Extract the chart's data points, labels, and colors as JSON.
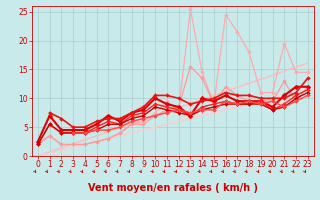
{
  "xlabel": "Vent moyen/en rafales ( km/h )",
  "xlim": [
    -0.5,
    23.5
  ],
  "ylim": [
    0,
    26
  ],
  "xticks": [
    0,
    1,
    2,
    3,
    4,
    5,
    6,
    7,
    8,
    9,
    10,
    11,
    12,
    13,
    14,
    15,
    16,
    17,
    18,
    19,
    20,
    21,
    22,
    23
  ],
  "yticks": [
    0,
    5,
    10,
    15,
    20,
    25
  ],
  "bg_color": "#c8eaea",
  "grid_color": "#aacccc",
  "lines": [
    {
      "x": [
        0,
        1,
        2,
        3,
        4,
        5,
        6,
        7,
        8,
        9,
        10,
        11,
        12,
        13,
        14,
        15,
        16,
        17,
        18,
        19,
        20,
        21,
        22,
        23
      ],
      "y": [
        0.0,
        0.7,
        1.4,
        2.1,
        2.8,
        3.5,
        4.2,
        4.9,
        5.6,
        6.3,
        7.0,
        7.7,
        8.4,
        9.1,
        9.8,
        10.5,
        11.2,
        11.9,
        12.6,
        13.3,
        14.0,
        14.7,
        15.4,
        16.1
      ],
      "color": "#ffbbbb",
      "lw": 1.0,
      "marker": null,
      "ms": 0
    },
    {
      "x": [
        0,
        1,
        2,
        3,
        4,
        5,
        6,
        7,
        8,
        9,
        10,
        11,
        12,
        13,
        14,
        15,
        16,
        17,
        18,
        19,
        20,
        21,
        22,
        23
      ],
      "y": [
        0.0,
        0.5,
        1.0,
        1.5,
        2.0,
        2.5,
        3.0,
        3.5,
        4.0,
        4.5,
        5.0,
        5.5,
        6.0,
        6.5,
        7.0,
        7.5,
        8.0,
        8.5,
        9.0,
        9.5,
        10.0,
        10.5,
        11.0,
        11.5
      ],
      "color": "#ffcccc",
      "lw": 1.0,
      "marker": null,
      "ms": 0
    },
    {
      "x": [
        0,
        1,
        2,
        3,
        4,
        5,
        6,
        7,
        8,
        9,
        10,
        11,
        12,
        13,
        14,
        15,
        16,
        17,
        18,
        19,
        20,
        21,
        22,
        23
      ],
      "y": [
        2.0,
        3.5,
        2.0,
        2.0,
        2.0,
        2.5,
        3.0,
        4.0,
        5.5,
        6.0,
        7.5,
        9.5,
        8.0,
        25.5,
        14.5,
        9.0,
        24.5,
        21.5,
        18.0,
        11.0,
        11.0,
        19.5,
        14.5,
        14.5
      ],
      "color": "#ffaaaa",
      "lw": 0.9,
      "marker": "D",
      "ms": 2.0
    },
    {
      "x": [
        0,
        1,
        2,
        3,
        4,
        5,
        6,
        7,
        8,
        9,
        10,
        11,
        12,
        13,
        14,
        15,
        16,
        17,
        18,
        19,
        20,
        21,
        22,
        23
      ],
      "y": [
        2.0,
        3.5,
        2.0,
        2.0,
        2.0,
        2.5,
        3.0,
        4.0,
        5.5,
        5.5,
        7.0,
        8.0,
        8.5,
        15.5,
        13.5,
        9.0,
        12.0,
        10.5,
        9.5,
        9.5,
        9.5,
        13.0,
        9.5,
        12.0
      ],
      "color": "#ff9999",
      "lw": 0.9,
      "marker": "D",
      "ms": 2.0
    },
    {
      "x": [
        0,
        1,
        2,
        3,
        4,
        5,
        6,
        7,
        8,
        9,
        10,
        11,
        12,
        13,
        14,
        15,
        16,
        17,
        18,
        19,
        20,
        21,
        22,
        23
      ],
      "y": [
        2.5,
        7.0,
        4.5,
        4.5,
        4.5,
        5.5,
        7.0,
        6.0,
        7.5,
        8.0,
        10.0,
        9.0,
        8.5,
        7.0,
        10.0,
        9.5,
        10.5,
        9.5,
        9.5,
        9.5,
        8.5,
        10.5,
        12.0,
        12.0
      ],
      "color": "#dd0000",
      "lw": 1.5,
      "marker": "D",
      "ms": 2.5
    },
    {
      "x": [
        0,
        1,
        2,
        3,
        4,
        5,
        6,
        7,
        8,
        9,
        10,
        11,
        12,
        13,
        14,
        15,
        16,
        17,
        18,
        19,
        20,
        21,
        22,
        23
      ],
      "y": [
        2.0,
        5.5,
        4.0,
        4.0,
        4.0,
        5.0,
        6.0,
        5.5,
        7.0,
        7.5,
        9.0,
        8.5,
        8.0,
        7.0,
        8.5,
        9.0,
        9.5,
        9.0,
        9.0,
        9.5,
        8.0,
        9.0,
        10.5,
        11.5
      ],
      "color": "#ff2222",
      "lw": 1.0,
      "marker": "D",
      "ms": 2.0
    },
    {
      "x": [
        0,
        1,
        2,
        3,
        4,
        5,
        6,
        7,
        8,
        9,
        10,
        11,
        12,
        13,
        14,
        15,
        16,
        17,
        18,
        19,
        20,
        21,
        22,
        23
      ],
      "y": [
        2.0,
        5.5,
        4.0,
        4.0,
        4.0,
        4.5,
        5.5,
        5.5,
        6.5,
        7.0,
        8.5,
        8.0,
        7.5,
        7.0,
        8.0,
        8.5,
        9.0,
        9.0,
        9.0,
        9.0,
        8.0,
        8.5,
        10.0,
        11.0
      ],
      "color": "#cc0000",
      "lw": 1.0,
      "marker": "D",
      "ms": 2.0
    },
    {
      "x": [
        3,
        4,
        5,
        6,
        7,
        8,
        9,
        10,
        11,
        12,
        13,
        14,
        15,
        16,
        17,
        18,
        19,
        20,
        21,
        22,
        23
      ],
      "y": [
        4.0,
        4.0,
        4.5,
        4.5,
        5.0,
        6.0,
        6.5,
        7.0,
        7.5,
        8.0,
        7.5,
        8.0,
        8.0,
        9.5,
        9.0,
        9.5,
        9.0,
        9.5,
        8.5,
        9.5,
        10.5
      ],
      "color": "#ff4444",
      "lw": 1.0,
      "marker": "D",
      "ms": 2.0
    },
    {
      "x": [
        1,
        2,
        3,
        4,
        5,
        6,
        7,
        8,
        9,
        10,
        11,
        12,
        13,
        14,
        15,
        16,
        17,
        18,
        19,
        20,
        21,
        22,
        23
      ],
      "y": [
        7.5,
        6.5,
        5.0,
        5.0,
        6.0,
        6.5,
        6.5,
        7.5,
        8.5,
        10.5,
        10.5,
        10.0,
        9.0,
        9.5,
        10.0,
        11.0,
        10.5,
        10.5,
        10.0,
        10.0,
        10.0,
        11.0,
        13.5
      ],
      "color": "#ee1111",
      "lw": 1.2,
      "marker": "D",
      "ms": 2.0
    }
  ],
  "tick_fontsize": 5.5,
  "xlabel_fontsize": 7
}
